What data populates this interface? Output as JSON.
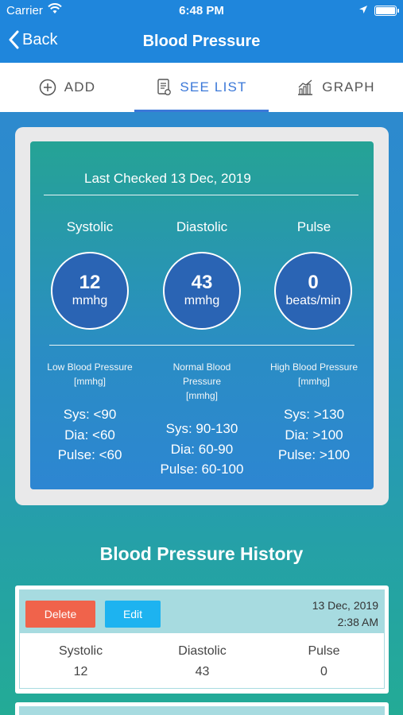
{
  "status_bar": {
    "carrier": "Carrier",
    "time": "6:48 PM"
  },
  "nav": {
    "back_label": "Back",
    "title": "Blood Pressure"
  },
  "tabs": [
    {
      "label": "ADD",
      "icon": "plus-circle-icon",
      "active": false
    },
    {
      "label": "SEE LIST",
      "icon": "list-document-icon",
      "active": true
    },
    {
      "label": "GRAPH",
      "icon": "graph-icon",
      "active": false
    }
  ],
  "summary": {
    "last_checked": "Last Checked 13 Dec, 2019",
    "columns": [
      {
        "label": "Systolic",
        "value": "12",
        "unit": "mmhg"
      },
      {
        "label": "Diastolic",
        "value": "43",
        "unit": "mmhg"
      },
      {
        "label": "Pulse",
        "value": "0",
        "unit": "beats/min"
      }
    ],
    "ranges": [
      {
        "heading_lines": [
          "Low Blood Pressure",
          "[mmhg]"
        ],
        "values": [
          "Sys: <90",
          "Dia: <60",
          "Pulse: <60"
        ]
      },
      {
        "heading_lines": [
          "Normal Blood",
          "Pressure",
          "[mmhg]"
        ],
        "values": [
          "Sys: 90-130",
          "Dia: 60-90",
          "Pulse: 60-100"
        ]
      },
      {
        "heading_lines": [
          "High Blood Pressure",
          "[mmhg]"
        ],
        "values": [
          "Sys: >130",
          "Dia: >100",
          "Pulse: >100"
        ]
      }
    ]
  },
  "history": {
    "title": "Blood Pressure History",
    "entries": [
      {
        "delete_label": "Delete",
        "edit_label": "Edit",
        "date": "13 Dec, 2019",
        "time": "2:38 AM",
        "columns": [
          {
            "label": "Systolic",
            "value": "12"
          },
          {
            "label": "Diastolic",
            "value": "43"
          },
          {
            "label": "Pulse",
            "value": "0"
          }
        ]
      }
    ]
  },
  "colors": {
    "nav_blue": "#1f86dc",
    "tab_active": "#3b78d8",
    "delete_red": "#f0634b",
    "edit_blue": "#1db3f0",
    "circle_blue": "#2a64b4"
  }
}
